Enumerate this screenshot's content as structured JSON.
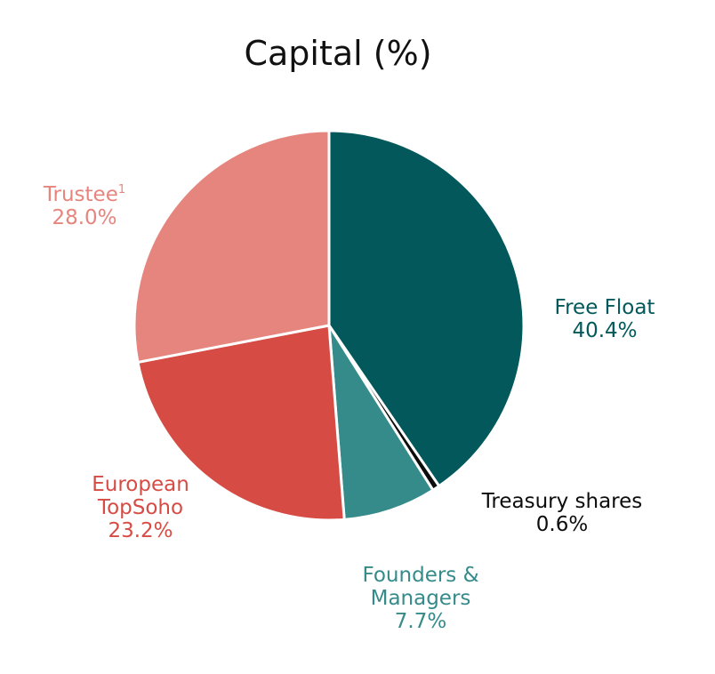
{
  "chart_data": {
    "type": "pie",
    "title": "Capital (%)",
    "slices": [
      {
        "name": "Free Float",
        "value": 40.4,
        "value_label": "40.4%",
        "color": "#02585a"
      },
      {
        "name": "Treasury shares",
        "value": 0.6,
        "value_label": "0.6%",
        "color": "#0d0d0d"
      },
      {
        "name": "Founders & Managers",
        "value": 7.7,
        "value_label": "7.7%",
        "color": "#358b8a"
      },
      {
        "name": "European TopSoho",
        "value": 23.2,
        "value_label": "23.2%",
        "color": "#d64c45"
      },
      {
        "name": "Trustee",
        "value": 28.0,
        "value_label": "28.0%",
        "color": "#e6857e"
      }
    ],
    "labels": {
      "free_float": {
        "line1": "Free Float",
        "value": "40.4%"
      },
      "treasury": {
        "line1": "Treasury shares",
        "value": "0.6%"
      },
      "founders": {
        "line1": "Founders &",
        "line2": "Managers",
        "value": "7.7%"
      },
      "european": {
        "line1": "European",
        "line2": "TopSoho",
        "value": "23.2%"
      },
      "trustee": {
        "line1": "Trustee",
        "footnote_mark": "1",
        "value": "28.0%"
      }
    }
  }
}
